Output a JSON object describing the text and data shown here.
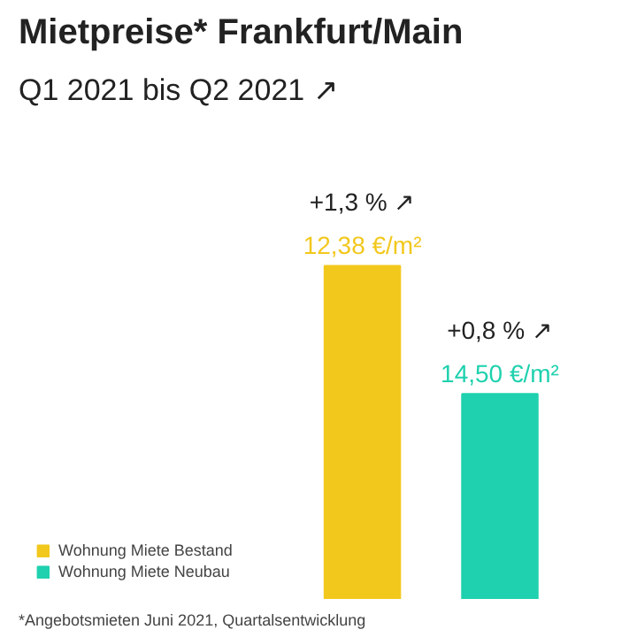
{
  "chart_data": {
    "type": "bar",
    "title": "Mietpreise* Frankfurt/Main",
    "subtitle": "Q1 2021 bis Q2 2021 ↗",
    "categories": [
      null
    ],
    "series": [
      {
        "name": "Wohnung Miete Bestand",
        "color": "#f2c81d",
        "values": [
          1.3
        ],
        "value_labels": [
          "+1,3 % ↗"
        ]
      },
      {
        "name": "Wohnung Miete Neubau",
        "color": "#1fd1ae",
        "values": [
          0.8
        ],
        "value_labels": [
          "+0,8 % ↗"
        ]
      }
    ],
    "annotations": [
      "12,38 €/m²",
      "14,50 €/m²",
      "*Angebotsmieten Juni 2021, Quartalsentwicklung"
    ],
    "legend": "bottom left"
  }
}
